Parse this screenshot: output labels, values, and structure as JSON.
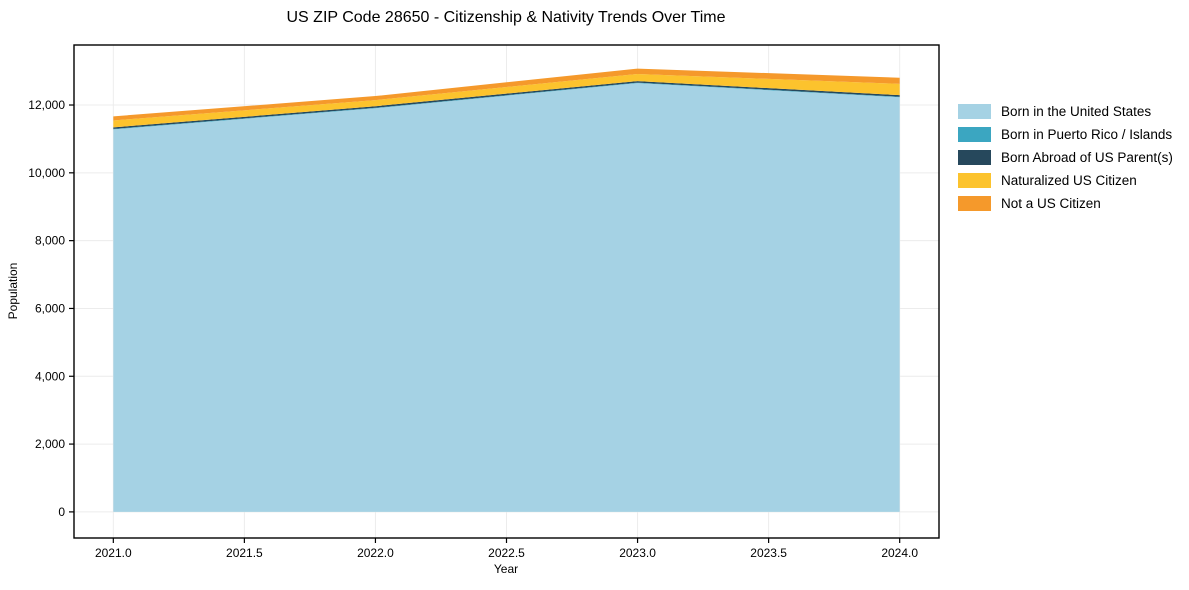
{
  "chart_data": {
    "type": "area",
    "stacked": true,
    "title": "US ZIP Code 28650 - Citizenship & Nativity Trends Over Time",
    "xlabel": "Year",
    "ylabel": "Population",
    "x": [
      2021,
      2022,
      2023,
      2024
    ],
    "series": [
      {
        "name": "Born in the United States",
        "color": "#a5d2e4",
        "values": [
          11280,
          11905,
          12645,
          12230
        ]
      },
      {
        "name": "Born in Puerto Rico / Islands",
        "color": "#3ba6c1",
        "values": [
          15,
          15,
          15,
          15
        ]
      },
      {
        "name": "Born Abroad of US Parent(s)",
        "color": "#26485c",
        "values": [
          45,
          45,
          45,
          45
        ]
      },
      {
        "name": "Naturalized US Citizen",
        "color": "#fcc32d",
        "values": [
          205,
          180,
          210,
          335
        ]
      },
      {
        "name": "Not a US Citizen",
        "color": "#f5992b",
        "values": [
          120,
          120,
          160,
          180
        ]
      }
    ],
    "totals": [
      11665,
      12265,
      13075,
      12805
    ],
    "xlim": [
      2020.85,
      2024.15
    ],
    "ylim": [
      -770,
      13770
    ],
    "xticks": {
      "values": [
        2021,
        2021.5,
        2022,
        2022.5,
        2023,
        2023.5,
        2024
      ],
      "labels": [
        "2021.0",
        "2021.5",
        "2022.0",
        "2022.5",
        "2023.0",
        "2023.5",
        "2024.0"
      ]
    },
    "yticks": {
      "values": [
        0,
        2000,
        4000,
        6000,
        8000,
        10000,
        12000
      ],
      "labels": [
        "0",
        "2,000",
        "4,000",
        "6,000",
        "8,000",
        "10,000",
        "12,000"
      ]
    },
    "grid": true,
    "grid_color": "#ececec",
    "spine_color": "#000000",
    "legend_position": "right of plot, top"
  }
}
